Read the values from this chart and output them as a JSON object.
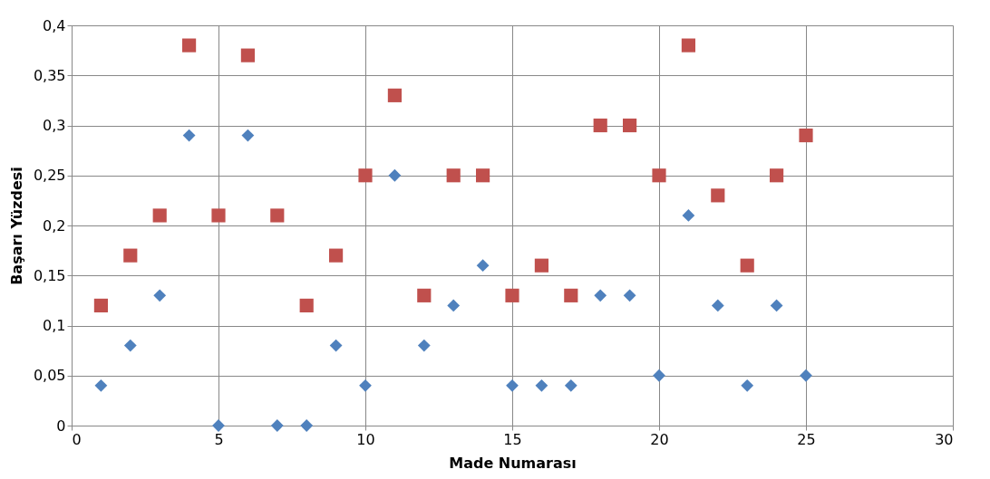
{
  "chart_data": {
    "type": "scatter",
    "xlabel": "Made Numarası",
    "ylabel": "Başarı Yüzdesi",
    "x": [
      1,
      2,
      3,
      4,
      5,
      6,
      7,
      8,
      9,
      10,
      11,
      12,
      13,
      14,
      15,
      16,
      17,
      18,
      19,
      20,
      21,
      22,
      23,
      24,
      25
    ],
    "series": [
      {
        "color": "#4f81bd",
        "marker": "diamond",
        "values": [
          0.04,
          0.08,
          0.13,
          0.29,
          0,
          0.29,
          0,
          0,
          0.08,
          0.04,
          0.25,
          0.08,
          0.12,
          0.16,
          0.04,
          0.04,
          0.04,
          0.13,
          0.13,
          0.05,
          0.21,
          0.12,
          0.04,
          0.12,
          0.05
        ]
      },
      {
        "color": "#c0504d",
        "marker": "square",
        "values": [
          0.12,
          0.17,
          0.21,
          0.38,
          0.21,
          0.37,
          0.21,
          0.12,
          0.17,
          0.25,
          0.33,
          0.13,
          0.25,
          0.25,
          0.13,
          0.16,
          0.13,
          0.3,
          0.3,
          0.25,
          0.38,
          0.23,
          0.16,
          0.25,
          0.29
        ]
      }
    ],
    "xlim": [
      0,
      30
    ],
    "xticks": [
      0,
      5,
      10,
      15,
      20,
      25,
      30
    ],
    "ylim": [
      0,
      0.4
    ],
    "yticks": [
      0,
      {
        "value": 0.05,
        "label": "0,05"
      },
      {
        "value": 0.1,
        "label": "0,1"
      },
      {
        "value": 0.15,
        "label": "0,15"
      },
      {
        "value": 0.2,
        "label": "0,2"
      },
      {
        "value": 0.25,
        "label": "0,25"
      },
      {
        "value": 0.3,
        "label": "0,3"
      },
      {
        "value": 0.35,
        "label": "0,35"
      },
      {
        "value": 0.4,
        "label": "0,4"
      }
    ],
    "grid": true
  }
}
